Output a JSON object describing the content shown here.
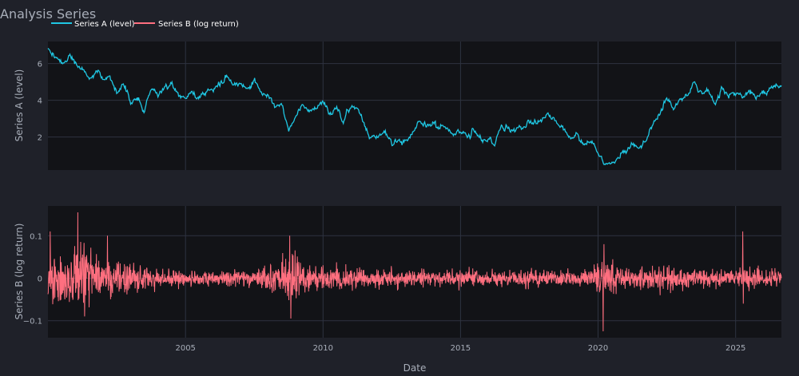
{
  "chart_data": {
    "type": "line",
    "title": "Analysis Series",
    "xlabel": "Date",
    "x_ticks": [
      "2005",
      "2010",
      "2015",
      "2020",
      "2025"
    ],
    "x_range": [
      "2000-01-01",
      "2026-09-01"
    ],
    "legend_position": "top-left",
    "background": "#1f2129",
    "plot_background": "#121317",
    "grid": true,
    "grid_color": "#2e3340",
    "text_color": "#a8aeb9",
    "panels": [
      {
        "name": "top",
        "ylabel": "Series A (level)",
        "ylim": [
          0.2,
          7.2
        ],
        "y_ticks": [
          2,
          4,
          6
        ],
        "y_tick_labels": [
          "2",
          "4",
          "6"
        ],
        "series": [
          {
            "name": "Series A (level)",
            "color": "#1fc7e3",
            "points": [
              [
                "2000-01-01",
                6.75
              ],
              [
                "2000-04-01",
                6.45
              ],
              [
                "2000-07-01",
                5.85
              ],
              [
                "2000-10-01",
                6.45
              ],
              [
                "2001-01-01",
                5.95
              ],
              [
                "2001-04-01",
                5.75
              ],
              [
                "2001-07-01",
                5.2
              ],
              [
                "2001-10-01",
                5.55
              ],
              [
                "2002-01-01",
                5.05
              ],
              [
                "2002-04-01",
                5.3
              ],
              [
                "2002-07-01",
                4.45
              ],
              [
                "2002-10-01",
                4.95
              ],
              [
                "2003-01-01",
                3.95
              ],
              [
                "2003-04-01",
                4.2
              ],
              [
                "2003-07-01",
                3.4
              ],
              [
                "2003-10-01",
                4.6
              ],
              [
                "2004-01-01",
                4.3
              ],
              [
                "2004-04-01",
                4.65
              ],
              [
                "2004-07-01",
                4.95
              ],
              [
                "2004-10-01",
                4.2
              ],
              [
                "2005-01-01",
                4.25
              ],
              [
                "2005-04-01",
                4.45
              ],
              [
                "2005-07-01",
                4.15
              ],
              [
                "2005-10-01",
                4.6
              ],
              [
                "2006-01-01",
                4.6
              ],
              [
                "2006-04-01",
                4.9
              ],
              [
                "2006-07-01",
                5.2
              ],
              [
                "2006-10-01",
                4.85
              ],
              [
                "2007-01-01",
                5.0
              ],
              [
                "2007-04-01",
                4.55
              ],
              [
                "2007-07-01",
                5.05
              ],
              [
                "2007-10-01",
                4.55
              ],
              [
                "2008-01-01",
                4.3
              ],
              [
                "2008-04-01",
                3.6
              ],
              [
                "2008-07-01",
                3.95
              ],
              [
                "2008-10-01",
                2.25
              ],
              [
                "2009-01-01",
                3.2
              ],
              [
                "2009-04-01",
                3.8
              ],
              [
                "2009-07-01",
                3.4
              ],
              [
                "2009-10-01",
                3.65
              ],
              [
                "2010-01-01",
                3.95
              ],
              [
                "2010-04-01",
                3.2
              ],
              [
                "2010-07-01",
                3.6
              ],
              [
                "2010-10-01",
                2.8
              ],
              [
                "2011-01-01",
                3.8
              ],
              [
                "2011-04-01",
                3.55
              ],
              [
                "2011-07-01",
                2.75
              ],
              [
                "2011-10-01",
                1.95
              ],
              [
                "2012-01-01",
                2.05
              ],
              [
                "2012-04-01",
                2.3
              ],
              [
                "2012-07-01",
                1.6
              ],
              [
                "2012-10-01",
                1.8
              ],
              [
                "2013-01-01",
                1.85
              ],
              [
                "2013-04-01",
                2.1
              ],
              [
                "2013-07-01",
                2.85
              ],
              [
                "2013-10-01",
                2.55
              ],
              [
                "2014-01-01",
                2.65
              ],
              [
                "2014-04-01",
                2.5
              ],
              [
                "2014-07-01",
                2.55
              ],
              [
                "2014-10-01",
                2.1
              ],
              [
                "2015-01-01",
                2.3
              ],
              [
                "2015-04-01",
                2.0
              ],
              [
                "2015-07-01",
                2.35
              ],
              [
                "2015-10-01",
                1.95
              ],
              [
                "2016-01-01",
                1.75
              ],
              [
                "2016-04-01",
                1.5
              ],
              [
                "2016-07-01",
                2.6
              ],
              [
                "2016-10-01",
                2.45
              ],
              [
                "2017-01-01",
                2.35
              ],
              [
                "2017-04-01",
                2.55
              ],
              [
                "2017-07-01",
                2.9
              ],
              [
                "2017-10-01",
                2.8
              ],
              [
                "2018-01-01",
                2.95
              ],
              [
                "2018-04-01",
                3.2
              ],
              [
                "2018-07-01",
                2.8
              ],
              [
                "2018-10-01",
                2.55
              ],
              [
                "2019-01-01",
                2.0
              ],
              [
                "2019-04-01",
                2.05
              ],
              [
                "2019-07-01",
                1.6
              ],
              [
                "2019-10-01",
                1.8
              ],
              [
                "2020-01-01",
                1.15
              ],
              [
                "2020-04-01",
                0.55
              ],
              [
                "2020-07-01",
                0.6
              ],
              [
                "2020-10-01",
                0.85
              ],
              [
                "2021-01-01",
                1.25
              ],
              [
                "2021-04-01",
                1.6
              ],
              [
                "2021-07-01",
                1.35
              ],
              [
                "2021-10-01",
                1.85
              ],
              [
                "2022-01-01",
                2.7
              ],
              [
                "2022-04-01",
                3.2
              ],
              [
                "2022-07-01",
                4.2
              ],
              [
                "2022-10-01",
                3.55
              ],
              [
                "2023-01-01",
                4.0
              ],
              [
                "2023-04-01",
                4.35
              ],
              [
                "2023-07-01",
                4.95
              ],
              [
                "2023-10-01",
                4.35
              ],
              [
                "2024-01-01",
                4.55
              ],
              [
                "2024-04-01",
                3.7
              ],
              [
                "2024-07-01",
                4.7
              ],
              [
                "2024-10-01",
                4.2
              ],
              [
                "2025-01-01",
                4.45
              ],
              [
                "2025-04-01",
                4.1
              ],
              [
                "2025-07-01",
                4.35
              ],
              [
                "2025-10-01",
                4.2
              ],
              [
                "2026-01-01",
                4.45
              ],
              [
                "2026-04-01",
                4.6
              ],
              [
                "2026-07-01",
                4.8
              ],
              [
                "2026-09-01",
                4.75
              ]
            ]
          }
        ]
      },
      {
        "name": "bottom",
        "ylabel": "Series B (log return)",
        "ylim": [
          -0.14,
          0.17
        ],
        "y_ticks": [
          -0.1,
          0,
          0.1
        ],
        "y_tick_labels": [
          "−0.1",
          "0",
          "0.1"
        ],
        "series": [
          {
            "name": "Series B (log return)",
            "color": "#ff6f7f",
            "volatility_envelope": [
              [
                "2000-01-01",
                0.055
              ],
              [
                "2000-07-01",
                0.06
              ],
              [
                "2001-01-01",
                0.065
              ],
              [
                "2001-07-01",
                0.055
              ],
              [
                "2002-01-01",
                0.045
              ],
              [
                "2002-07-01",
                0.035
              ],
              [
                "2003-01-01",
                0.028
              ],
              [
                "2004-01-01",
                0.02
              ],
              [
                "2005-01-01",
                0.016
              ],
              [
                "2006-01-01",
                0.015
              ],
              [
                "2007-01-01",
                0.016
              ],
              [
                "2007-07-01",
                0.02
              ],
              [
                "2008-01-01",
                0.025
              ],
              [
                "2008-07-01",
                0.03
              ],
              [
                "2008-10-01",
                0.05
              ],
              [
                "2009-01-01",
                0.045
              ],
              [
                "2009-07-01",
                0.03
              ],
              [
                "2010-01-01",
                0.025
              ],
              [
                "2011-01-01",
                0.022
              ],
              [
                "2012-01-01",
                0.018
              ],
              [
                "2014-01-01",
                0.016
              ],
              [
                "2016-01-01",
                0.016
              ],
              [
                "2018-01-01",
                0.016
              ],
              [
                "2019-10-01",
                0.015
              ],
              [
                "2020-03-01",
                0.045
              ],
              [
                "2020-07-01",
                0.03
              ],
              [
                "2021-01-01",
                0.02
              ],
              [
                "2022-01-01",
                0.025
              ],
              [
                "2022-07-01",
                0.03
              ],
              [
                "2023-01-01",
                0.022
              ],
              [
                "2024-01-01",
                0.018
              ],
              [
                "2025-04-01",
                0.022
              ],
              [
                "2026-09-01",
                0.018
              ]
            ],
            "extremes": [
              [
                "2000-02-01",
                0.11
              ],
              [
                "2001-02-01",
                0.155
              ],
              [
                "2001-05-01",
                -0.09
              ],
              [
                "2002-03-01",
                0.1
              ],
              [
                "2008-11-01",
                -0.095
              ],
              [
                "2008-10-15",
                0.1
              ],
              [
                "2020-03-10",
                -0.125
              ],
              [
                "2020-03-20",
                0.08
              ],
              [
                "2025-04-05",
                0.11
              ],
              [
                "2025-04-15",
                -0.06
              ]
            ]
          }
        ]
      }
    ]
  }
}
